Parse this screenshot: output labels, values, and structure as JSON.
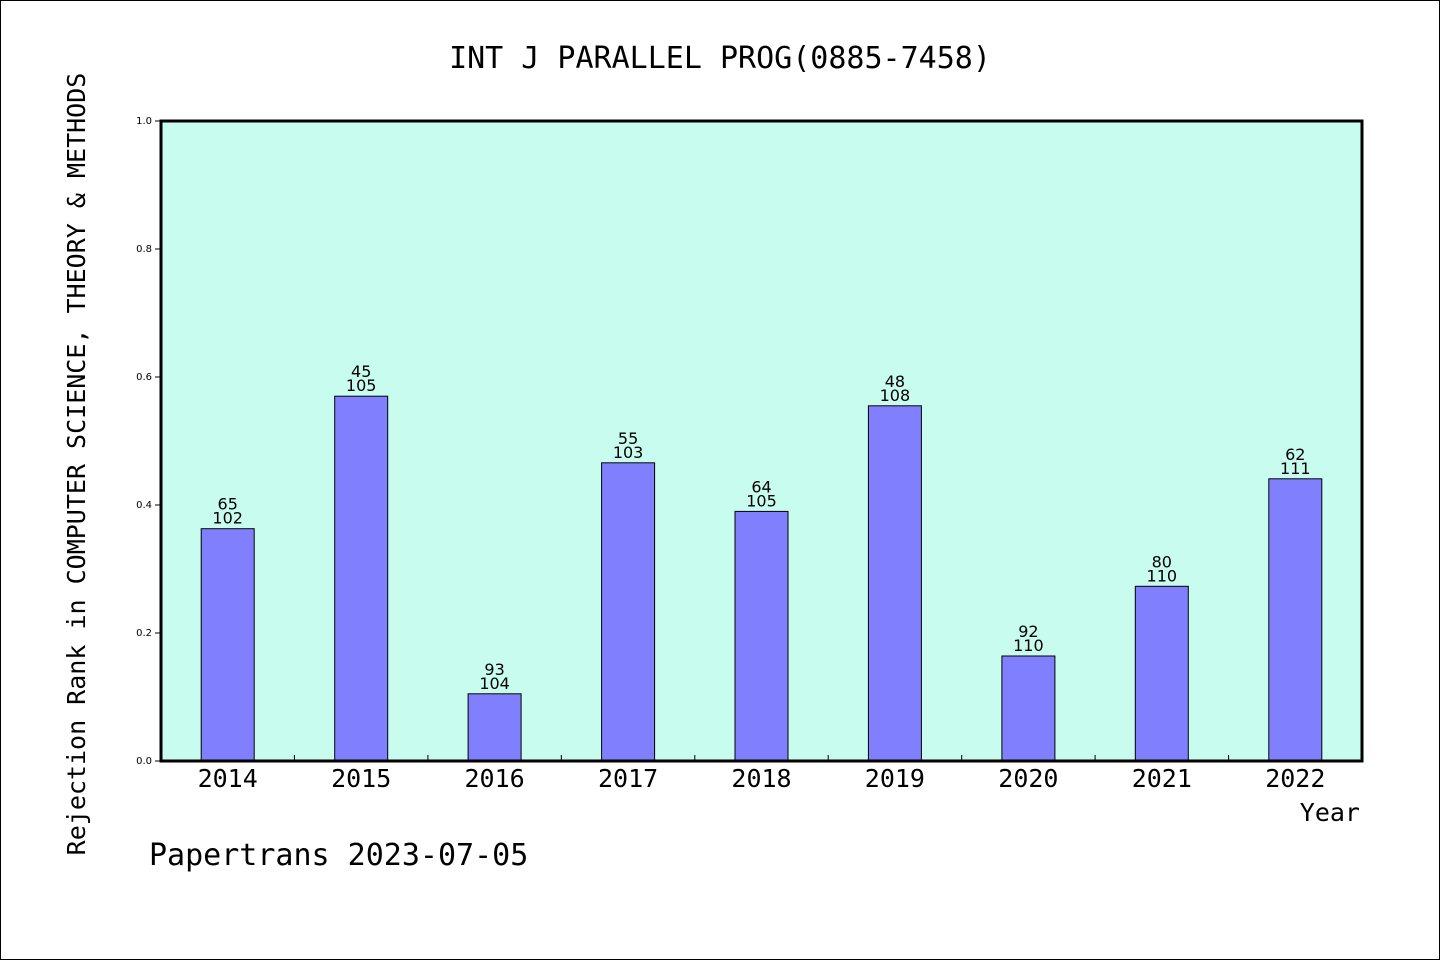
{
  "chart_data": {
    "type": "bar",
    "title": "INT J PARALLEL PROG(0885-7458)",
    "xlabel": "Year",
    "ylabel": "Rejection Rank in COMPUTER SCIENCE, THEORY & METHODS",
    "categories": [
      "2014",
      "2015",
      "2016",
      "2017",
      "2018",
      "2019",
      "2020",
      "2021",
      "2022"
    ],
    "values": [
      0.363,
      0.57,
      0.105,
      0.466,
      0.39,
      0.555,
      0.164,
      0.273,
      0.441
    ],
    "rank_labels": [
      "65",
      "45",
      "93",
      "55",
      "64",
      "48",
      "92",
      "80",
      "62"
    ],
    "total_labels": [
      "102",
      "105",
      "104",
      "103",
      "105",
      "108",
      "110",
      "110",
      "111"
    ],
    "ylim": [
      0.0,
      1.0
    ],
    "yticks": [
      "0.0",
      "0.2",
      "0.4",
      "0.6",
      "0.8",
      "1.0"
    ],
    "grid": false,
    "colors": {
      "plot_background": "#c8fcee",
      "bar_fill": "#8080ff",
      "bar_stroke": "#000000",
      "axis": "#000000"
    }
  },
  "footer": "Papertrans 2023-07-05"
}
